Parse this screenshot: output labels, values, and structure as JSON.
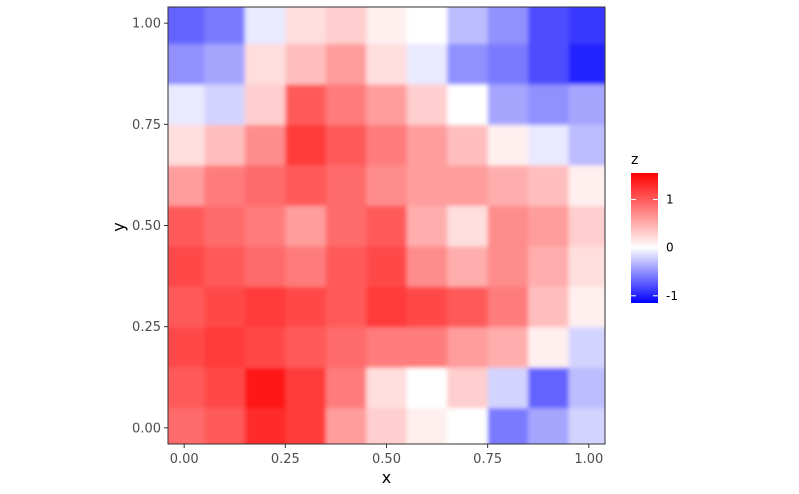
{
  "chart_data": {
    "type": "heatmap",
    "title": "",
    "xlabel": "x",
    "ylabel": "y",
    "xlim": [
      -0.04,
      1.04
    ],
    "ylim": [
      -0.04,
      1.04
    ],
    "x_ticks": [
      0.0,
      0.25,
      0.5,
      0.75,
      1.0
    ],
    "x_tick_labels": [
      "0.00",
      "0.25",
      "0.50",
      "0.75",
      "1.00"
    ],
    "y_ticks": [
      0.0,
      0.25,
      0.5,
      0.75,
      1.0
    ],
    "y_tick_labels": [
      "0.00",
      "0.25",
      "0.50",
      "0.75",
      "1.00"
    ],
    "grid": false,
    "legend": {
      "title": "z",
      "placement": "right",
      "ticks": [
        1,
        0,
        -1
      ],
      "tick_labels": [
        "1",
        "0",
        "-1"
      ],
      "range": [
        -1.15,
        1.55
      ]
    },
    "colorscale": {
      "low": "#0000ff",
      "mid": "#ffffff",
      "high": "#ff0000",
      "midpoint": 0
    },
    "x": [
      0.0,
      0.1,
      0.2,
      0.3,
      0.4,
      0.5,
      0.6,
      0.7,
      0.8,
      0.9,
      1.0
    ],
    "y": [
      0.0,
      0.1,
      0.2,
      0.3,
      0.4,
      0.5,
      0.6,
      0.7,
      0.8,
      0.9,
      1.0
    ],
    "z": [
      [
        0.9,
        1.0,
        1.3,
        1.2,
        0.6,
        0.3,
        0.1,
        0.0,
        -0.6,
        -0.4,
        -0.2
      ],
      [
        1.0,
        1.1,
        1.4,
        1.2,
        0.8,
        0.2,
        0.0,
        0.3,
        -0.2,
        -0.7,
        -0.3
      ],
      [
        1.1,
        1.2,
        1.1,
        1.0,
        0.9,
        0.8,
        0.8,
        0.6,
        0.5,
        0.1,
        -0.2
      ],
      [
        1.0,
        1.1,
        1.2,
        1.1,
        1.0,
        1.2,
        1.1,
        1.0,
        0.8,
        0.4,
        0.1
      ],
      [
        1.1,
        1.0,
        0.9,
        0.8,
        1.0,
        1.1,
        0.7,
        0.5,
        0.7,
        0.5,
        0.2
      ],
      [
        1.0,
        0.9,
        0.8,
        0.6,
        0.9,
        1.0,
        0.5,
        0.2,
        0.7,
        0.6,
        0.3
      ],
      [
        0.6,
        0.8,
        0.9,
        1.0,
        0.9,
        0.7,
        0.6,
        0.6,
        0.5,
        0.4,
        0.1
      ],
      [
        0.2,
        0.4,
        0.7,
        1.2,
        1.0,
        0.8,
        0.6,
        0.4,
        0.1,
        -0.1,
        -0.3
      ],
      [
        -0.1,
        -0.2,
        0.3,
        1.0,
        0.8,
        0.6,
        0.3,
        0.0,
        -0.4,
        -0.5,
        -0.4
      ],
      [
        -0.5,
        -0.4,
        0.2,
        0.4,
        0.6,
        0.2,
        -0.1,
        -0.5,
        -0.6,
        -0.8,
        -1.0
      ],
      [
        -0.7,
        -0.6,
        -0.1,
        0.2,
        0.3,
        0.1,
        0.0,
        -0.3,
        -0.5,
        -0.8,
        -0.9
      ]
    ]
  }
}
